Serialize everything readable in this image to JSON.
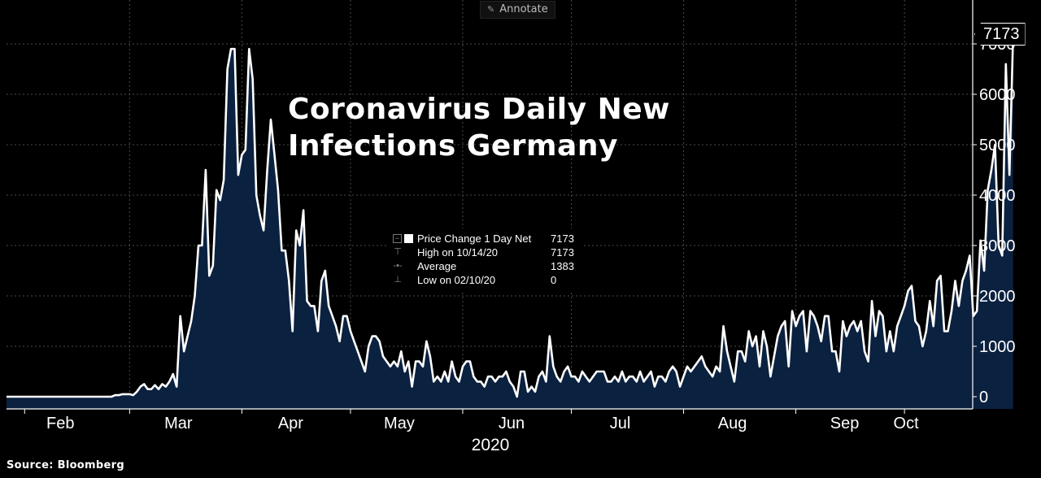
{
  "toolbar": {
    "annotate_label": "Annotate",
    "annotate_icon": "pen-icon"
  },
  "title_line1": "Coronavirus Daily New",
  "title_line2": "Infections Germany",
  "source": "Source: Bloomberg",
  "legend": {
    "rows": [
      {
        "label": "Price Change 1 Day Net",
        "value": "7173"
      },
      {
        "label": "High on 10/14/20",
        "value": "7173"
      },
      {
        "label": "Average",
        "value": "1383"
      },
      {
        "label": "Low on 02/10/20",
        "value": "0"
      }
    ]
  },
  "last_value_label": "7173",
  "colors": {
    "background": "#000000",
    "line": "#ffffff",
    "area": "#0b2140",
    "grid": "#4a4a4a"
  },
  "chart_data": {
    "type": "area",
    "title": "Coronavirus Daily New Infections Germany",
    "xlabel": "2020",
    "ylabel": "",
    "ylim": [
      -300,
      7500
    ],
    "y_axis_side": "right",
    "y_ticks": [
      0,
      1000,
      2000,
      3000,
      4000,
      5000,
      6000,
      7000
    ],
    "x_ticks": [
      {
        "label": "Feb",
        "date": "2020-02-01"
      },
      {
        "label": "Mar",
        "date": "2020-03-01"
      },
      {
        "label": "Apr",
        "date": "2020-04-01"
      },
      {
        "label": "May",
        "date": "2020-05-01"
      },
      {
        "label": "Jun",
        "date": "2020-06-01"
      },
      {
        "label": "Jul",
        "date": "2020-07-01"
      },
      {
        "label": "Aug",
        "date": "2020-08-01"
      },
      {
        "label": "Sep",
        "date": "2020-09-01"
      },
      {
        "label": "Oct",
        "date": "2020-10-01"
      }
    ],
    "x_range": [
      "2020-01-27",
      "2020-10-14"
    ],
    "grid": true,
    "series": [
      {
        "name": "Price Change 1 Day Net",
        "x_start": "2020-01-27",
        "step_days": 1,
        "values": [
          0,
          0,
          0,
          0,
          0,
          0,
          0,
          0,
          0,
          0,
          0,
          0,
          0,
          0,
          0,
          0,
          0,
          0,
          0,
          0,
          0,
          0,
          0,
          0,
          0,
          0,
          0,
          0,
          0,
          0,
          30,
          30,
          50,
          50,
          50,
          30,
          100,
          200,
          250,
          150,
          150,
          230,
          150,
          250,
          200,
          300,
          450,
          200,
          1600,
          900,
          1200,
          1500,
          2000,
          3000,
          3000,
          4500,
          2400,
          2600,
          4100,
          3900,
          4300,
          6500,
          6900,
          6900,
          4400,
          4800,
          4900,
          6900,
          6300,
          4000,
          3600,
          3300,
          4500,
          5500,
          4800,
          4100,
          2900,
          2900,
          2300,
          1300,
          3300,
          3000,
          3700,
          1900,
          1800,
          1800,
          1300,
          2300,
          2500,
          1800,
          1600,
          1400,
          1100,
          1600,
          1600,
          1300,
          1100,
          900,
          700,
          500,
          1000,
          1200,
          1200,
          1100,
          800,
          700,
          600,
          700,
          600,
          900,
          500,
          700,
          200,
          700,
          700,
          600,
          1100,
          800,
          300,
          400,
          300,
          500,
          300,
          700,
          400,
          300,
          600,
          700,
          700,
          400,
          300,
          300,
          200,
          400,
          400,
          300,
          400,
          400,
          500,
          300,
          200,
          0,
          500,
          500,
          100,
          200,
          100,
          400,
          500,
          300,
          1200,
          600,
          400,
          300,
          500,
          600,
          400,
          400,
          300,
          500,
          400,
          300,
          400,
          500,
          500,
          500,
          300,
          300,
          400,
          300,
          500,
          300,
          400,
          400,
          300,
          500,
          300,
          400,
          500,
          200,
          400,
          400,
          300,
          500,
          600,
          500,
          200,
          400,
          600,
          500,
          600,
          700,
          800,
          600,
          500,
          400,
          600,
          500,
          1400,
          900,
          600,
          300,
          900,
          900,
          700,
          1300,
          1000,
          1200,
          600,
          1300,
          1000,
          400,
          800,
          1200,
          1400,
          1500,
          600,
          1700,
          1400,
          1600,
          1700,
          900,
          1700,
          1600,
          1400,
          1100,
          1600,
          1600,
          900,
          900,
          500,
          1500,
          1200,
          1400,
          1500,
          1300,
          1500,
          900,
          700,
          1900,
          1200,
          1700,
          1600,
          900,
          1300,
          900,
          1400,
          1600,
          1800,
          2100,
          2200,
          1500,
          1400,
          1000,
          1300,
          1900,
          1400,
          2300,
          2400,
          1300,
          1300,
          1700,
          2300,
          1800,
          2300,
          2500,
          2800,
          1600,
          1700,
          3100,
          2500,
          4100,
          4500,
          5000,
          3000,
          2800,
          6600,
          4400,
          7173
        ]
      }
    ]
  }
}
